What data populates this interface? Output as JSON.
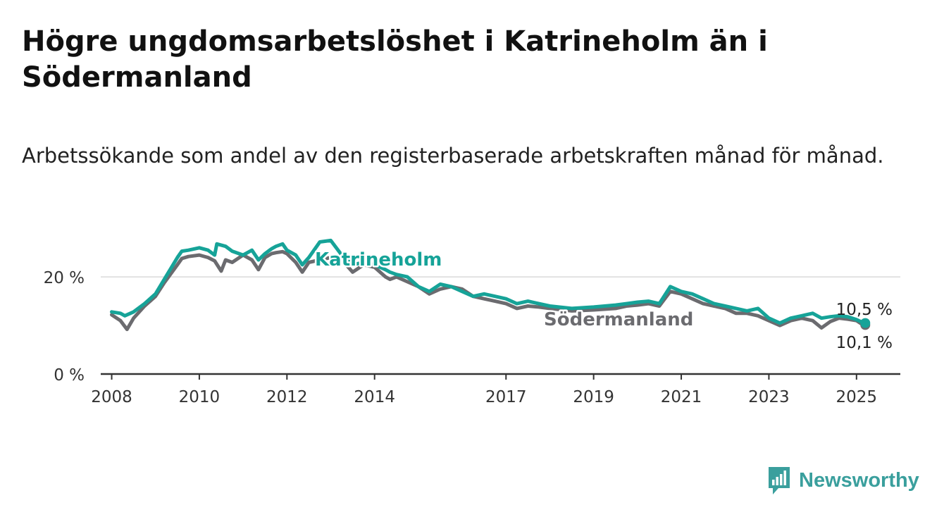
{
  "header": {
    "title": "Högre ungdomsarbetslöshet i Katrineholm än i Södermanland",
    "subtitle": "Arbetssökande som andel av den registerbaserade arbetskraften månad för månad."
  },
  "brand": {
    "name": "Newsworthy",
    "color": "#3a9f9d"
  },
  "chart_data": {
    "type": "line",
    "x_unit": "year",
    "xlim": [
      2007.75,
      2026.0
    ],
    "ylim": [
      0,
      28
    ],
    "y_ticks": [
      {
        "value": 0,
        "label": "0 %"
      },
      {
        "value": 20,
        "label": "20 %"
      }
    ],
    "x_ticks": [
      {
        "value": 2008,
        "label": "2008"
      },
      {
        "value": 2010,
        "label": "2010"
      },
      {
        "value": 2012,
        "label": "2012"
      },
      {
        "value": 2014,
        "label": "2014"
      },
      {
        "value": 2017,
        "label": "2017"
      },
      {
        "value": 2019,
        "label": "2019"
      },
      {
        "value": 2021,
        "label": "2021"
      },
      {
        "value": 2023,
        "label": "2023"
      },
      {
        "value": 2025,
        "label": "2025"
      }
    ],
    "grid": {
      "y": true,
      "x": false
    },
    "series": [
      {
        "name": "Södermanland",
        "color": "#6b6b6f",
        "end_label": "10,1 %",
        "x": [
          2008.0,
          2008.2,
          2008.35,
          2008.5,
          2008.75,
          2009.0,
          2009.2,
          2009.5,
          2009.6,
          2009.75,
          2010.0,
          2010.2,
          2010.35,
          2010.5,
          2010.6,
          2010.75,
          2011.0,
          2011.2,
          2011.35,
          2011.5,
          2011.65,
          2011.75,
          2011.9,
          2012.0,
          2012.2,
          2012.35,
          2012.5,
          2012.75,
          2013.0,
          2013.25,
          2013.5,
          2013.75,
          2014.0,
          2014.25,
          2014.35,
          2014.5,
          2014.75,
          2015.0,
          2015.25,
          2015.5,
          2015.75,
          2016.0,
          2016.25,
          2016.5,
          2016.75,
          2017.0,
          2017.25,
          2017.5,
          2017.75,
          2018.0,
          2018.5,
          2019.0,
          2019.5,
          2019.75,
          2020.0,
          2020.25,
          2020.5,
          2020.75,
          2021.0,
          2021.25,
          2021.5,
          2021.75,
          2022.0,
          2022.25,
          2022.5,
          2022.75,
          2023.0,
          2023.25,
          2023.5,
          2023.75,
          2024.0,
          2024.2,
          2024.4,
          2024.6,
          2024.8,
          2025.0,
          2025.1,
          2025.2
        ],
        "y": [
          12.2,
          11.0,
          9.2,
          11.5,
          14.0,
          16.0,
          18.8,
          22.5,
          23.8,
          24.2,
          24.5,
          24.0,
          23.3,
          21.2,
          23.5,
          23.0,
          24.5,
          23.5,
          21.5,
          24.0,
          24.8,
          25.0,
          25.2,
          24.8,
          23.0,
          21.0,
          23.0,
          23.5,
          24.0,
          23.5,
          21.0,
          22.5,
          22.0,
          20.0,
          19.5,
          20.0,
          19.0,
          18.0,
          16.5,
          17.5,
          18.0,
          17.5,
          16.0,
          15.5,
          15.0,
          14.5,
          13.5,
          14.0,
          13.8,
          13.5,
          13.0,
          13.2,
          13.5,
          14.0,
          14.2,
          14.5,
          14.0,
          17.0,
          16.5,
          15.5,
          14.5,
          14.0,
          13.5,
          12.5,
          12.5,
          12.0,
          11.0,
          10.0,
          11.0,
          11.5,
          11.0,
          9.5,
          10.8,
          11.5,
          11.3,
          11.0,
          10.4,
          10.1
        ]
      },
      {
        "name": "Katrineholm",
        "color": "#16a398",
        "end_label": "10,5 %",
        "x": [
          2008.0,
          2008.2,
          2008.3,
          2008.5,
          2008.75,
          2009.0,
          2009.2,
          2009.5,
          2009.6,
          2009.75,
          2010.0,
          2010.2,
          2010.35,
          2010.4,
          2010.6,
          2010.75,
          2011.0,
          2011.2,
          2011.35,
          2011.5,
          2011.65,
          2011.75,
          2011.9,
          2012.0,
          2012.2,
          2012.35,
          2012.5,
          2012.75,
          2013.0,
          2013.25,
          2013.5,
          2013.75,
          2014.0,
          2014.25,
          2014.35,
          2014.5,
          2014.75,
          2015.0,
          2015.25,
          2015.5,
          2015.75,
          2016.0,
          2016.25,
          2016.5,
          2016.75,
          2017.0,
          2017.25,
          2017.5,
          2017.75,
          2018.0,
          2018.5,
          2019.0,
          2019.5,
          2019.75,
          2020.0,
          2020.25,
          2020.5,
          2020.75,
          2021.0,
          2021.25,
          2021.5,
          2021.75,
          2022.0,
          2022.25,
          2022.5,
          2022.75,
          2023.0,
          2023.25,
          2023.5,
          2023.75,
          2024.0,
          2024.2,
          2024.4,
          2024.6,
          2024.8,
          2025.0,
          2025.1,
          2025.2
        ],
        "y": [
          12.8,
          12.5,
          12.0,
          12.8,
          14.5,
          16.5,
          19.5,
          24.0,
          25.3,
          25.5,
          26.0,
          25.5,
          24.5,
          26.8,
          26.3,
          25.3,
          24.5,
          25.5,
          23.5,
          24.8,
          25.8,
          26.3,
          26.8,
          25.5,
          24.5,
          22.5,
          24.0,
          27.2,
          27.5,
          24.5,
          22.5,
          23.0,
          22.5,
          21.5,
          21.0,
          20.5,
          20.0,
          18.0,
          17.0,
          18.5,
          18.0,
          17.0,
          16.0,
          16.5,
          16.0,
          15.5,
          14.5,
          15.0,
          14.5,
          14.0,
          13.5,
          13.8,
          14.2,
          14.5,
          14.8,
          15.0,
          14.5,
          18.0,
          17.0,
          16.5,
          15.5,
          14.5,
          14.0,
          13.5,
          13.0,
          13.5,
          11.5,
          10.5,
          11.5,
          12.0,
          12.5,
          11.5,
          11.8,
          12.0,
          11.8,
          11.2,
          10.8,
          10.5
        ]
      }
    ],
    "annotations": [
      {
        "text": "Katrineholm",
        "series": "Katrineholm"
      },
      {
        "text": "Södermanland",
        "series": "Södermanland"
      }
    ]
  }
}
